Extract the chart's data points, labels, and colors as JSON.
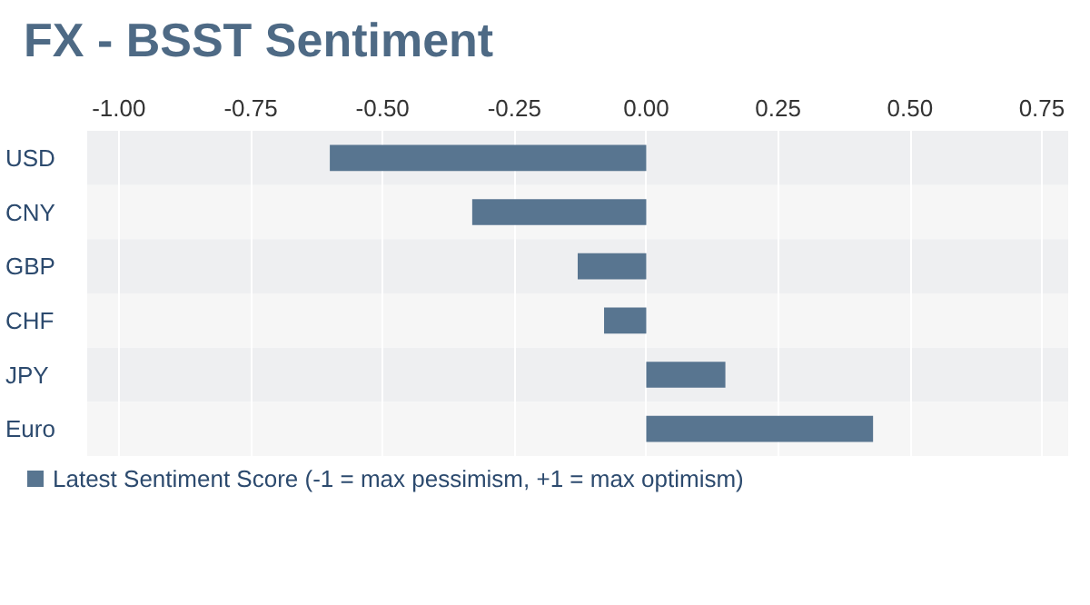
{
  "chart_data": {
    "type": "bar",
    "title": "FX - BSST Sentiment",
    "orientation": "horizontal",
    "categories": [
      "USD",
      "CNY",
      "GBP",
      "CHF",
      "JPY",
      "Euro"
    ],
    "series": [
      {
        "name": "Latest Sentiment Score (-1 = max pessimism, +1 = max optimism)",
        "color": "#587590",
        "values": [
          -0.6,
          -0.33,
          -0.13,
          -0.08,
          0.15,
          0.43
        ]
      }
    ],
    "xlim": [
      -1.06,
      0.8
    ],
    "xticks": [
      {
        "value": -1,
        "label": "-1.00"
      },
      {
        "value": -0.75,
        "label": "-0.75"
      },
      {
        "value": -0.5,
        "label": "-0.50"
      },
      {
        "value": -0.25,
        "label": "-0.25"
      },
      {
        "value": 0,
        "label": "0.00"
      },
      {
        "value": 0.25,
        "label": "0.25"
      },
      {
        "value": 0.5,
        "label": "0.50"
      },
      {
        "value": 0.75,
        "label": "0.75"
      }
    ],
    "grid": "x",
    "legend": "bottom left"
  }
}
